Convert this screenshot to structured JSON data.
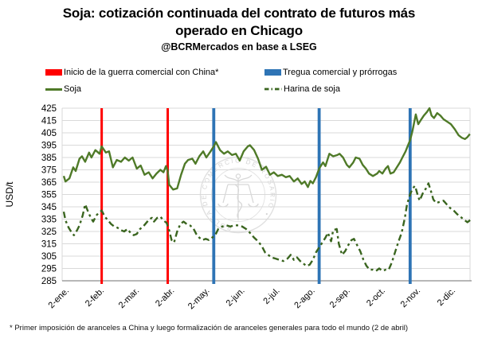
{
  "title": {
    "line1": "Soja: cotización continuada del contrato de futuros más",
    "line2": "operado en Chicago",
    "subtitle": "@BCRMercados en base a LSEG"
  },
  "legend": {
    "items": [
      {
        "id": "war",
        "label": "Inicio de la guerra comercial con China*",
        "color": "#ff0000",
        "style": "rect"
      },
      {
        "id": "truce",
        "label": "Tregua comercial y prórrogas",
        "color": "#2e74b5",
        "style": "rect"
      },
      {
        "id": "soja",
        "label": "Soja",
        "color": "#4f7a28",
        "style": "solid-line"
      },
      {
        "id": "harina",
        "label": "Harina de soja",
        "color": "#3a651f",
        "style": "dashed-line"
      }
    ]
  },
  "watermark": {
    "ring_text": "BOLSA DE COMERCIO DE ROSARIO • "
  },
  "footnote": "* Primer imposición de aranceles a China y luego formalización de aranceles generales para todo el mundo  (2 de abril)",
  "chart_data": {
    "type": "line",
    "title": "Soja: cotización continuada del contrato de futuros más operado en Chicago",
    "source": "@BCRMercados en base a LSEG",
    "xlabel": "",
    "ylabel": "USD/t",
    "ylim": [
      285,
      425
    ],
    "yticks": [
      285,
      295,
      305,
      315,
      325,
      335,
      345,
      355,
      365,
      375,
      385,
      395,
      405,
      415,
      425
    ],
    "xticklabels": [
      "2-ene.",
      "2-feb.",
      "2-mar.",
      "2-abr.",
      "2-may.",
      "2-jun.",
      "2-jul.",
      "2-ago.",
      "2-sep.",
      "2-oct.",
      "2-nov.",
      "2-dic."
    ],
    "x_unit": "months since 2-ene (tick index, fractional = position within month)",
    "xlim": [
      -0.05,
      11.6
    ],
    "grid": true,
    "legend_position": "top",
    "colors": {
      "grid": "#d9d9d9",
      "axis": "#8c8c8c",
      "text": "#000000"
    },
    "events": [
      {
        "label": "Inicio de la guerra comercial con China*",
        "color": "#ff0000",
        "width": 3,
        "positions": [
          1.08,
          2.96
        ]
      },
      {
        "label": "Tregua comercial y prórrogas",
        "color": "#2e74b5",
        "width": 3.8,
        "positions": [
          4.27,
          7.27,
          9.86
        ]
      }
    ],
    "series": [
      {
        "name": "Soja",
        "style": "solid",
        "color": "#4f7a28",
        "points": [
          [
            0,
            370
          ],
          [
            0.05,
            365.5
          ],
          [
            0.16,
            368
          ],
          [
            0.27,
            377
          ],
          [
            0.34,
            374
          ],
          [
            0.45,
            384
          ],
          [
            0.52,
            386
          ],
          [
            0.61,
            381.5
          ],
          [
            0.72,
            389
          ],
          [
            0.79,
            385
          ],
          [
            0.9,
            391
          ],
          [
            1.02,
            388
          ],
          [
            1.08,
            394
          ],
          [
            1.2,
            389
          ],
          [
            1.29,
            390
          ],
          [
            1.4,
            377
          ],
          [
            1.51,
            383
          ],
          [
            1.63,
            381.5
          ],
          [
            1.74,
            385
          ],
          [
            1.85,
            382.5
          ],
          [
            1.96,
            385
          ],
          [
            2.08,
            376
          ],
          [
            2.19,
            378.5
          ],
          [
            2.3,
            371
          ],
          [
            2.42,
            373
          ],
          [
            2.53,
            368
          ],
          [
            2.64,
            372
          ],
          [
            2.75,
            375
          ],
          [
            2.84,
            373
          ],
          [
            2.91,
            378
          ],
          [
            2.96,
            374
          ],
          [
            3.0,
            363
          ],
          [
            3.11,
            359
          ],
          [
            3.23,
            360
          ],
          [
            3.34,
            371
          ],
          [
            3.45,
            380
          ],
          [
            3.54,
            383
          ],
          [
            3.66,
            384
          ],
          [
            3.75,
            380
          ],
          [
            3.86,
            386
          ],
          [
            3.97,
            390
          ],
          [
            4.06,
            385
          ],
          [
            4.18,
            390
          ],
          [
            4.27,
            394
          ],
          [
            4.33,
            397.5
          ],
          [
            4.45,
            391
          ],
          [
            4.56,
            388
          ],
          [
            4.67,
            390
          ],
          [
            4.79,
            387
          ],
          [
            4.9,
            388
          ],
          [
            5.01,
            382.5
          ],
          [
            5.12,
            390
          ],
          [
            5.24,
            394
          ],
          [
            5.3,
            395
          ],
          [
            5.42,
            391
          ],
          [
            5.53,
            384
          ],
          [
            5.64,
            375
          ],
          [
            5.76,
            377.5
          ],
          [
            5.87,
            371
          ],
          [
            5.98,
            373
          ],
          [
            6.09,
            370
          ],
          [
            6.21,
            371
          ],
          [
            6.32,
            369
          ],
          [
            6.43,
            370
          ],
          [
            6.55,
            365.5
          ],
          [
            6.66,
            368
          ],
          [
            6.77,
            363.5
          ],
          [
            6.86,
            365.5
          ],
          [
            6.95,
            361
          ],
          [
            7.02,
            366
          ],
          [
            7.09,
            364
          ],
          [
            7.18,
            369
          ],
          [
            7.27,
            376
          ],
          [
            7.38,
            381
          ],
          [
            7.45,
            378
          ],
          [
            7.56,
            388
          ],
          [
            7.67,
            386
          ],
          [
            7.79,
            387
          ],
          [
            7.85,
            388
          ],
          [
            7.95,
            385
          ],
          [
            8.06,
            379
          ],
          [
            8.13,
            377
          ],
          [
            8.24,
            381
          ],
          [
            8.31,
            385
          ],
          [
            8.42,
            384
          ],
          [
            8.51,
            379
          ],
          [
            8.6,
            376
          ],
          [
            8.69,
            372
          ],
          [
            8.8,
            370
          ],
          [
            8.92,
            372
          ],
          [
            8.98,
            374
          ],
          [
            9.07,
            372
          ],
          [
            9.16,
            376
          ],
          [
            9.23,
            378
          ],
          [
            9.3,
            372
          ],
          [
            9.39,
            373
          ],
          [
            9.48,
            377
          ],
          [
            9.57,
            381
          ],
          [
            9.64,
            385
          ],
          [
            9.73,
            390
          ],
          [
            9.8,
            395
          ],
          [
            9.86,
            399
          ],
          [
            9.93,
            407
          ],
          [
            10.02,
            420
          ],
          [
            10.09,
            412
          ],
          [
            10.18,
            416
          ],
          [
            10.25,
            419
          ],
          [
            10.34,
            422
          ],
          [
            10.41,
            425
          ],
          [
            10.47,
            419
          ],
          [
            10.54,
            417
          ],
          [
            10.63,
            421
          ],
          [
            10.72,
            419
          ],
          [
            10.81,
            416
          ],
          [
            10.92,
            414
          ],
          [
            11.02,
            412
          ],
          [
            11.13,
            408
          ],
          [
            11.24,
            403
          ],
          [
            11.33,
            401
          ],
          [
            11.42,
            400
          ],
          [
            11.49,
            401.5
          ],
          [
            11.56,
            404
          ]
        ]
      },
      {
        "name": "Harina de soja",
        "style": "dashed",
        "color": "#3a651f",
        "points": [
          [
            0,
            341
          ],
          [
            0.05,
            334
          ],
          [
            0.14,
            328
          ],
          [
            0.23,
            324
          ],
          [
            0.29,
            322
          ],
          [
            0.38,
            326
          ],
          [
            0.45,
            330
          ],
          [
            0.54,
            338
          ],
          [
            0.61,
            347
          ],
          [
            0.68,
            342
          ],
          [
            0.77,
            336
          ],
          [
            0.84,
            333
          ],
          [
            0.93,
            338
          ],
          [
            0.99,
            340
          ],
          [
            1.08,
            342
          ],
          [
            1.17,
            337
          ],
          [
            1.26,
            334
          ],
          [
            1.35,
            331
          ],
          [
            1.44,
            329
          ],
          [
            1.53,
            328
          ],
          [
            1.63,
            326
          ],
          [
            1.72,
            325
          ],
          [
            1.81,
            327
          ],
          [
            1.9,
            324
          ],
          [
            1.99,
            322
          ],
          [
            2.08,
            323
          ],
          [
            2.17,
            327
          ],
          [
            2.26,
            329
          ],
          [
            2.35,
            332
          ],
          [
            2.44,
            335
          ],
          [
            2.51,
            336
          ],
          [
            2.57,
            333
          ],
          [
            2.66,
            336
          ],
          [
            2.75,
            337
          ],
          [
            2.84,
            334
          ],
          [
            2.93,
            332
          ],
          [
            3.0,
            326
          ],
          [
            3.07,
            318
          ],
          [
            3.14,
            316
          ],
          [
            3.23,
            325
          ],
          [
            3.32,
            331
          ],
          [
            3.41,
            333
          ],
          [
            3.5,
            331
          ],
          [
            3.59,
            330
          ],
          [
            3.68,
            328
          ],
          [
            3.77,
            323
          ],
          [
            3.86,
            320
          ],
          [
            3.95,
            318
          ],
          [
            4.04,
            319
          ],
          [
            4.13,
            318
          ],
          [
            4.22,
            320
          ],
          [
            4.31,
            322
          ],
          [
            4.4,
            327
          ],
          [
            4.51,
            329
          ],
          [
            4.63,
            330
          ],
          [
            4.74,
            329
          ],
          [
            4.85,
            330
          ],
          [
            4.97,
            330
          ],
          [
            5.08,
            329
          ],
          [
            5.19,
            327
          ],
          [
            5.3,
            324
          ],
          [
            5.42,
            320
          ],
          [
            5.53,
            317
          ],
          [
            5.64,
            313
          ],
          [
            5.73,
            308
          ],
          [
            5.82,
            306
          ],
          [
            5.91,
            304
          ],
          [
            6.03,
            303
          ],
          [
            6.14,
            302
          ],
          [
            6.25,
            301
          ],
          [
            6.37,
            303
          ],
          [
            6.46,
            306
          ],
          [
            6.55,
            302
          ],
          [
            6.64,
            304
          ],
          [
            6.73,
            301
          ],
          [
            6.82,
            299
          ],
          [
            6.91,
            297
          ],
          [
            7.0,
            298
          ],
          [
            7.09,
            302
          ],
          [
            7.18,
            308
          ],
          [
            7.27,
            312
          ],
          [
            7.36,
            316
          ],
          [
            7.45,
            320
          ],
          [
            7.52,
            324
          ],
          [
            7.61,
            317
          ],
          [
            7.67,
            326
          ],
          [
            7.77,
            327
          ],
          [
            7.83,
            315
          ],
          [
            7.92,
            306
          ],
          [
            8.01,
            309
          ],
          [
            8.1,
            314
          ],
          [
            8.19,
            318
          ],
          [
            8.26,
            319
          ],
          [
            8.35,
            314
          ],
          [
            8.44,
            309
          ],
          [
            8.53,
            302
          ],
          [
            8.62,
            297
          ],
          [
            8.71,
            294
          ],
          [
            8.8,
            294
          ],
          [
            8.89,
            293
          ],
          [
            8.98,
            295
          ],
          [
            9.07,
            293
          ],
          [
            9.16,
            294
          ],
          [
            9.25,
            294
          ],
          [
            9.34,
            300
          ],
          [
            9.44,
            309
          ],
          [
            9.53,
            317
          ],
          [
            9.62,
            324
          ],
          [
            9.71,
            336
          ],
          [
            9.77,
            347
          ],
          [
            9.86,
            355
          ],
          [
            9.93,
            360
          ],
          [
            10.0,
            362
          ],
          [
            10.07,
            355
          ],
          [
            10.13,
            350
          ],
          [
            10.22,
            356
          ],
          [
            10.31,
            360
          ],
          [
            10.38,
            364
          ],
          [
            10.45,
            358
          ],
          [
            10.52,
            351
          ],
          [
            10.6,
            348
          ],
          [
            10.7,
            349
          ],
          [
            10.81,
            350
          ],
          [
            10.9,
            347
          ],
          [
            11.0,
            344
          ],
          [
            11.1,
            342
          ],
          [
            11.2,
            339
          ],
          [
            11.31,
            336.5
          ],
          [
            11.42,
            334
          ],
          [
            11.49,
            332.5
          ],
          [
            11.58,
            334.5
          ]
        ]
      }
    ]
  }
}
